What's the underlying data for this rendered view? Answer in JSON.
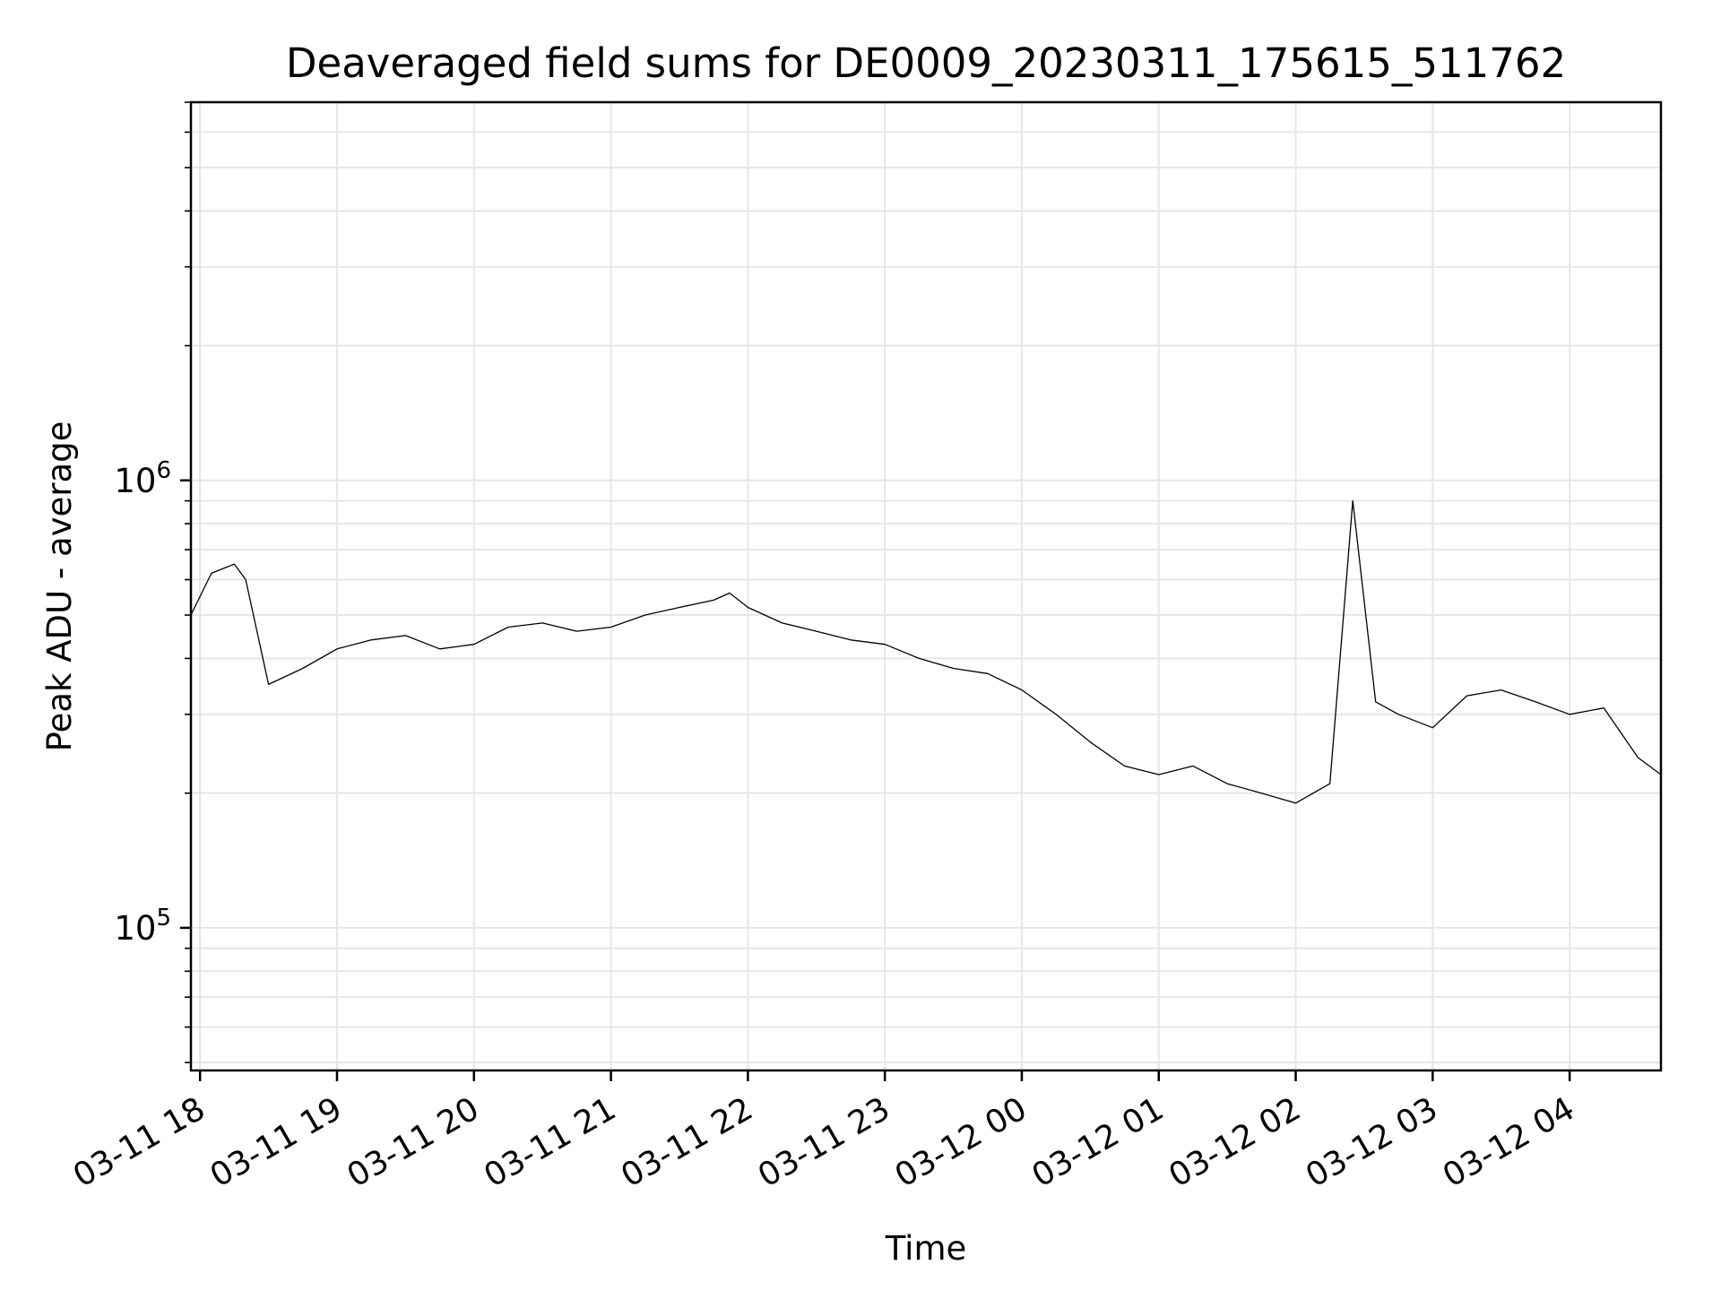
{
  "chart_data": {
    "type": "line",
    "title": "Deaveraged field sums for DE0009_20230311_175615_511762",
    "xlabel": "Time",
    "ylabel": "Peak ADU - average",
    "yscale": "log",
    "ylim": [
      48000,
      7000000
    ],
    "xlim": [
      "2023-03-11 17:56",
      "2023-03-12 04:40"
    ],
    "grid": true,
    "x_tick_labels": [
      "03-11 18",
      "03-11 19",
      "03-11 20",
      "03-11 21",
      "03-11 22",
      "03-11 23",
      "03-12 00",
      "03-12 01",
      "03-12 02",
      "03-12 03",
      "03-12 04"
    ],
    "y_tick_labels": [
      {
        "value": 100000,
        "base": "10",
        "exp": "5"
      },
      {
        "value": 1000000,
        "base": "10",
        "exp": "6"
      }
    ],
    "series": [
      {
        "color": "#000000",
        "x": [
          "2023-03-11 17:56",
          "2023-03-11 18:05",
          "2023-03-11 18:15",
          "2023-03-11 18:20",
          "2023-03-11 18:30",
          "2023-03-11 18:45",
          "2023-03-11 19:00",
          "2023-03-11 19:15",
          "2023-03-11 19:30",
          "2023-03-11 19:45",
          "2023-03-11 20:00",
          "2023-03-11 20:15",
          "2023-03-11 20:30",
          "2023-03-11 20:45",
          "2023-03-11 21:00",
          "2023-03-11 21:15",
          "2023-03-11 21:30",
          "2023-03-11 21:45",
          "2023-03-11 21:52",
          "2023-03-11 22:00",
          "2023-03-11 22:15",
          "2023-03-11 22:30",
          "2023-03-11 22:45",
          "2023-03-11 23:00",
          "2023-03-11 23:15",
          "2023-03-11 23:30",
          "2023-03-11 23:45",
          "2023-03-12 00:00",
          "2023-03-12 00:15",
          "2023-03-12 00:30",
          "2023-03-12 00:45",
          "2023-03-12 01:00",
          "2023-03-12 01:15",
          "2023-03-12 01:30",
          "2023-03-12 01:45",
          "2023-03-12 02:00",
          "2023-03-12 02:15",
          "2023-03-12 02:25",
          "2023-03-12 02:35",
          "2023-03-12 02:45",
          "2023-03-12 03:00",
          "2023-03-12 03:15",
          "2023-03-12 03:30",
          "2023-03-12 03:45",
          "2023-03-12 04:00",
          "2023-03-12 04:15",
          "2023-03-12 04:30",
          "2023-03-12 04:40"
        ],
        "values": [
          500000,
          620000,
          650000,
          600000,
          350000,
          380000,
          420000,
          440000,
          450000,
          420000,
          430000,
          470000,
          480000,
          460000,
          470000,
          500000,
          520000,
          540000,
          560000,
          520000,
          480000,
          460000,
          440000,
          430000,
          400000,
          380000,
          370000,
          340000,
          300000,
          260000,
          230000,
          220000,
          230000,
          210000,
          200000,
          190000,
          210000,
          900000,
          320000,
          300000,
          280000,
          330000,
          340000,
          320000,
          300000,
          310000,
          240000,
          220000
        ]
      }
    ]
  }
}
